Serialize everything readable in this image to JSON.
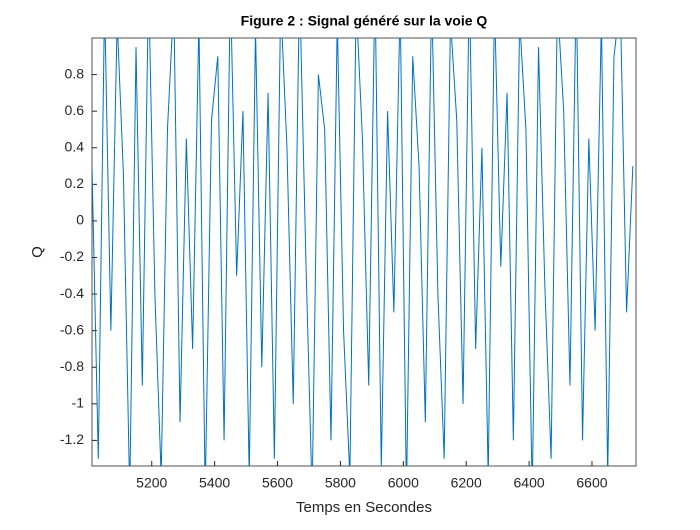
{
  "chart_data": {
    "type": "line",
    "title": "Figure 2 : Signal généré sur la voie Q",
    "x_label": "Temps en Secondes",
    "y_label": "Q",
    "x": [
      5010,
      5030,
      5050,
      5070,
      5090,
      5110,
      5130,
      5150,
      5170,
      5190,
      5210,
      5230,
      5250,
      5270,
      5290,
      5310,
      5330,
      5350,
      5370,
      5390,
      5410,
      5430,
      5450,
      5470,
      5490,
      5510,
      5530,
      5550,
      5570,
      5590,
      5610,
      5630,
      5650,
      5670,
      5690,
      5710,
      5730,
      5750,
      5770,
      5790,
      5810,
      5830,
      5850,
      5870,
      5890,
      5910,
      5930,
      5950,
      5970,
      5990,
      6010,
      6030,
      6050,
      6070,
      6090,
      6110,
      6130,
      6150,
      6170,
      6190,
      6210,
      6230,
      6250,
      6270,
      6290,
      6310,
      6330,
      6350,
      6370,
      6390,
      6410,
      6430,
      6450,
      6470,
      6490,
      6510,
      6530,
      6550,
      6570,
      6590,
      6610,
      6630,
      6650,
      6670,
      6690,
      6710,
      6730
    ],
    "series": [
      {
        "name": "Q",
        "color": "#0072bd",
        "values": [
          0.3,
          -1.3,
          1.2,
          -0.6,
          1.1,
          0.25,
          -1.5,
          0.95,
          -0.9,
          1.3,
          -0.4,
          -1.4,
          0.5,
          1.2,
          -1.1,
          0.45,
          -0.7,
          1.1,
          -1.5,
          0.55,
          0.9,
          -1.2,
          1.3,
          -0.3,
          0.6,
          -1.4,
          1.05,
          -0.8,
          0.7,
          -1.3,
          1.2,
          0.4,
          -1.0,
          1.3,
          -0.2,
          -1.5,
          0.8,
          0.5,
          -1.2,
          1.1,
          -0.6,
          -1.4,
          1.2,
          0.45,
          -0.9,
          1.3,
          -1.35,
          0.6,
          -0.5,
          1.2,
          -1.5,
          0.9,
          0.3,
          -1.1,
          1.25,
          -0.4,
          -1.3,
          1.1,
          0.55,
          -1.0,
          1.3,
          -0.7,
          0.4,
          -1.4,
          1.2,
          -0.25,
          0.7,
          -1.2,
          1.1,
          0.5,
          -1.5,
          0.95,
          -0.35,
          -1.3,
          1.2,
          0.6,
          -0.9,
          1.3,
          -1.2,
          0.45,
          -0.6,
          1.1,
          -1.4,
          0.9,
          1.2,
          -0.5,
          0.3
        ]
      }
    ],
    "xlim": [
      5010,
      6740
    ],
    "ylim": [
      -1.34,
      1.0
    ],
    "xticks": [
      5200,
      5400,
      5600,
      5800,
      6000,
      6200,
      6400,
      6600
    ],
    "yticks": [
      -1.2,
      -1,
      -0.8,
      -0.6,
      -0.4,
      -0.2,
      0,
      0.2,
      0.4,
      0.6,
      0.8
    ],
    "grid": false
  }
}
